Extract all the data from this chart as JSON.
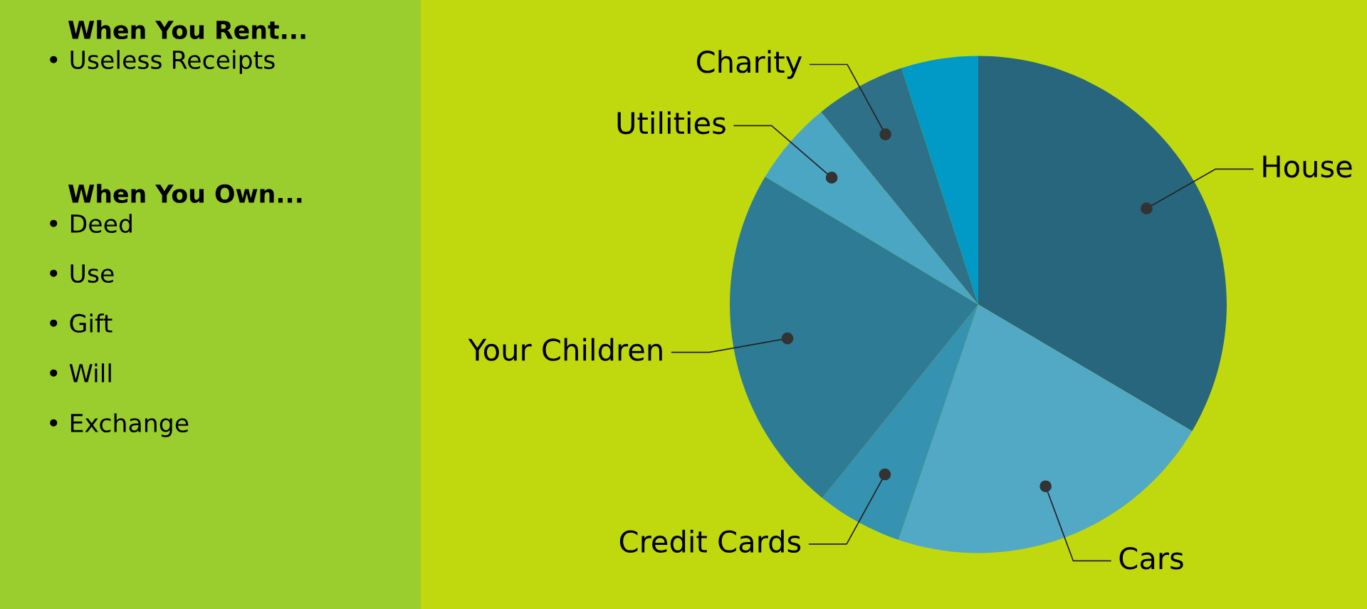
{
  "chart_data": [
    {
      "type": "other",
      "title": "When You Rent...",
      "annotations": [
        "• Useless Receipts"
      ]
    },
    {
      "type": "other",
      "title": "When You Own...",
      "annotations": [
        "• Deed",
        "• Use",
        "• Gift",
        "• Will",
        "• Exchange"
      ]
    },
    {
      "type": "pie",
      "categories": [
        "House",
        "Cars",
        "Credit Cards",
        "Your Children",
        "Utilities",
        "Charity",
        null
      ],
      "values": [
        33.5,
        21.7,
        5.6,
        22.8,
        5.5,
        5.9,
        5.0
      ],
      "colors": [
        "#27667c",
        "#52a9c6",
        "#3592b0",
        "#2e7b95",
        "#4ba6c4",
        "#2e7088",
        "#0199c6"
      ]
    }
  ]
}
